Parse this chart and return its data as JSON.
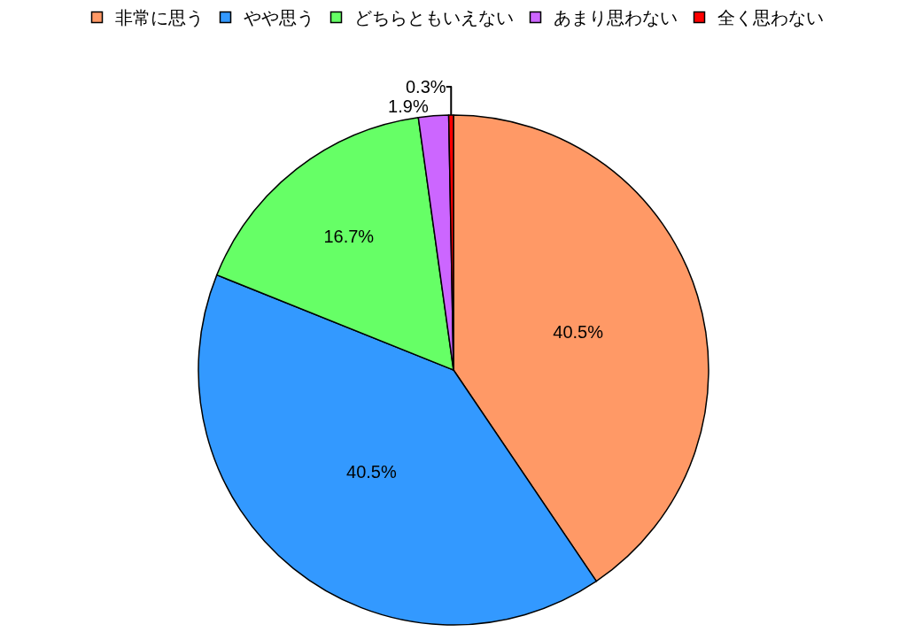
{
  "chart_data": {
    "type": "pie",
    "categories": [
      "非常に思う",
      "やや思う",
      "どちらともいえない",
      "あまり思わない",
      "全く思わない"
    ],
    "values": [
      40.5,
      40.5,
      16.7,
      1.9,
      0.3
    ],
    "value_labels": [
      "40.5%",
      "40.5%",
      "16.7%",
      "1.9%",
      "0.3%"
    ],
    "colors": [
      "#ff9966",
      "#3399ff",
      "#66ff66",
      "#cc66ff",
      "#ff0000"
    ],
    "legend": "top"
  }
}
